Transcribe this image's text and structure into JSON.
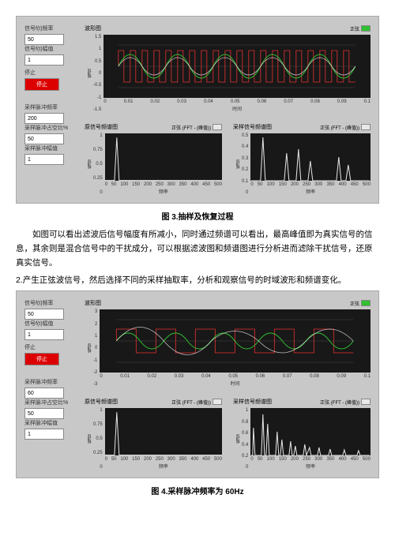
{
  "fig3": {
    "caption": "图 3.抽样及恢复过程",
    "controls": {
      "group1": [
        {
          "label": "信号f(t)频率",
          "value": "50"
        },
        {
          "label": "信号f(t)幅值",
          "value": "1"
        }
      ],
      "stop": "停止",
      "stop_btn": "停止",
      "group2": [
        {
          "label": "采样脉冲频率",
          "value": "200"
        },
        {
          "label": "采样脉冲占空比%",
          "value": "50"
        },
        {
          "label": "采样脉冲幅值",
          "value": "1"
        }
      ]
    },
    "top_chart": {
      "title": "波形图",
      "legend": "正弦",
      "xlabel": "时间",
      "ylabel": "幅值",
      "yticks": [
        "1.5",
        "1",
        "0.5",
        "0",
        "-0.5",
        "-1",
        "-1.5"
      ],
      "xticks": [
        "0",
        "0.01",
        "0.02",
        "0.03",
        "0.04",
        "0.05",
        "0.06",
        "0.07",
        "0.08",
        "0.09",
        "0.1"
      ]
    },
    "spec_left": {
      "title": "原信号频谱图",
      "legend": "正弦 (FFT - (峰值))",
      "xlabel": "频率",
      "ylabel": "幅值",
      "yticks": [
        "1",
        "0.75",
        "0.5",
        "0.25",
        "0"
      ],
      "xticks": [
        "0",
        "50",
        "100",
        "150",
        "200",
        "250",
        "300",
        "350",
        "400",
        "450",
        "500"
      ]
    },
    "spec_right": {
      "title": "采样信号频谱图",
      "legend": "正弦 (FFT - (峰值))",
      "xlabel": "频率",
      "ylabel": "幅值",
      "yticks": [
        "0.5",
        "0.4",
        "0.3",
        "0.2",
        "0.1",
        "0"
      ],
      "xticks": [
        "0",
        "50",
        "100",
        "150",
        "200",
        "250",
        "300",
        "350",
        "400",
        "450",
        "500"
      ]
    },
    "colors": {
      "bg": "#c8c8c8",
      "plot_bg": "#181818",
      "red": "#e63030",
      "green": "#30c030",
      "white": "#e8e8e8",
      "grid": "#505050"
    }
  },
  "para1": "如图可以看出滤波后信号幅度有所减小，同时通过频谱可以看出，最高峰值即为真实信号的信息，其余则是混合信号中的干扰成分，可以根据滤波图和频谱图进行分析进而滤除干扰信号，还原真实信号。",
  "para2": "2.产生正弦波信号，然后选择不同的采样抽取率，分析和观察信号的时域波形和频谱变化。",
  "fig4": {
    "caption": "图 4.采样脉冲频率为 60Hz",
    "controls": {
      "group1": [
        {
          "label": "信号f(t)频率",
          "value": "50"
        },
        {
          "label": "信号f(t)幅值",
          "value": "1"
        }
      ],
      "stop": "停止",
      "stop_btn": "停止",
      "group2": [
        {
          "label": "采样脉冲频率",
          "value": "60"
        },
        {
          "label": "采样脉冲占空比%",
          "value": "50"
        },
        {
          "label": "采样脉冲幅值",
          "value": "1"
        }
      ]
    },
    "top_chart": {
      "title": "波形图",
      "legend": "正弦",
      "xlabel": "时间",
      "ylabel": "幅值",
      "yticks": [
        "3",
        "2",
        "1",
        "0",
        "-1",
        "-2",
        "-3"
      ],
      "xticks": [
        "0",
        "0.01",
        "0.02",
        "0.03",
        "0.04",
        "0.05",
        "0.06",
        "0.07",
        "0.08",
        "0.09",
        "0.1"
      ]
    },
    "spec_left": {
      "title": "原信号频谱图",
      "legend": "正弦 (FFT - (峰值))",
      "xlabel": "频率",
      "ylabel": "幅值",
      "yticks": [
        "1",
        "0.75",
        "0.5",
        "0.25",
        "0"
      ],
      "xticks": [
        "0",
        "50",
        "100",
        "150",
        "200",
        "250",
        "300",
        "350",
        "400",
        "450",
        "500"
      ]
    },
    "spec_right": {
      "title": "采样信号频谱图",
      "legend": "正弦 (FFT - (峰值))",
      "xlabel": "频率",
      "ylabel": "幅值",
      "yticks": [
        "1",
        "0.8",
        "0.6",
        "0.4",
        "0.2",
        "0"
      ],
      "xticks": [
        "0",
        "50",
        "100",
        "150",
        "200",
        "250",
        "300",
        "350",
        "400",
        "450",
        "500"
      ]
    }
  }
}
